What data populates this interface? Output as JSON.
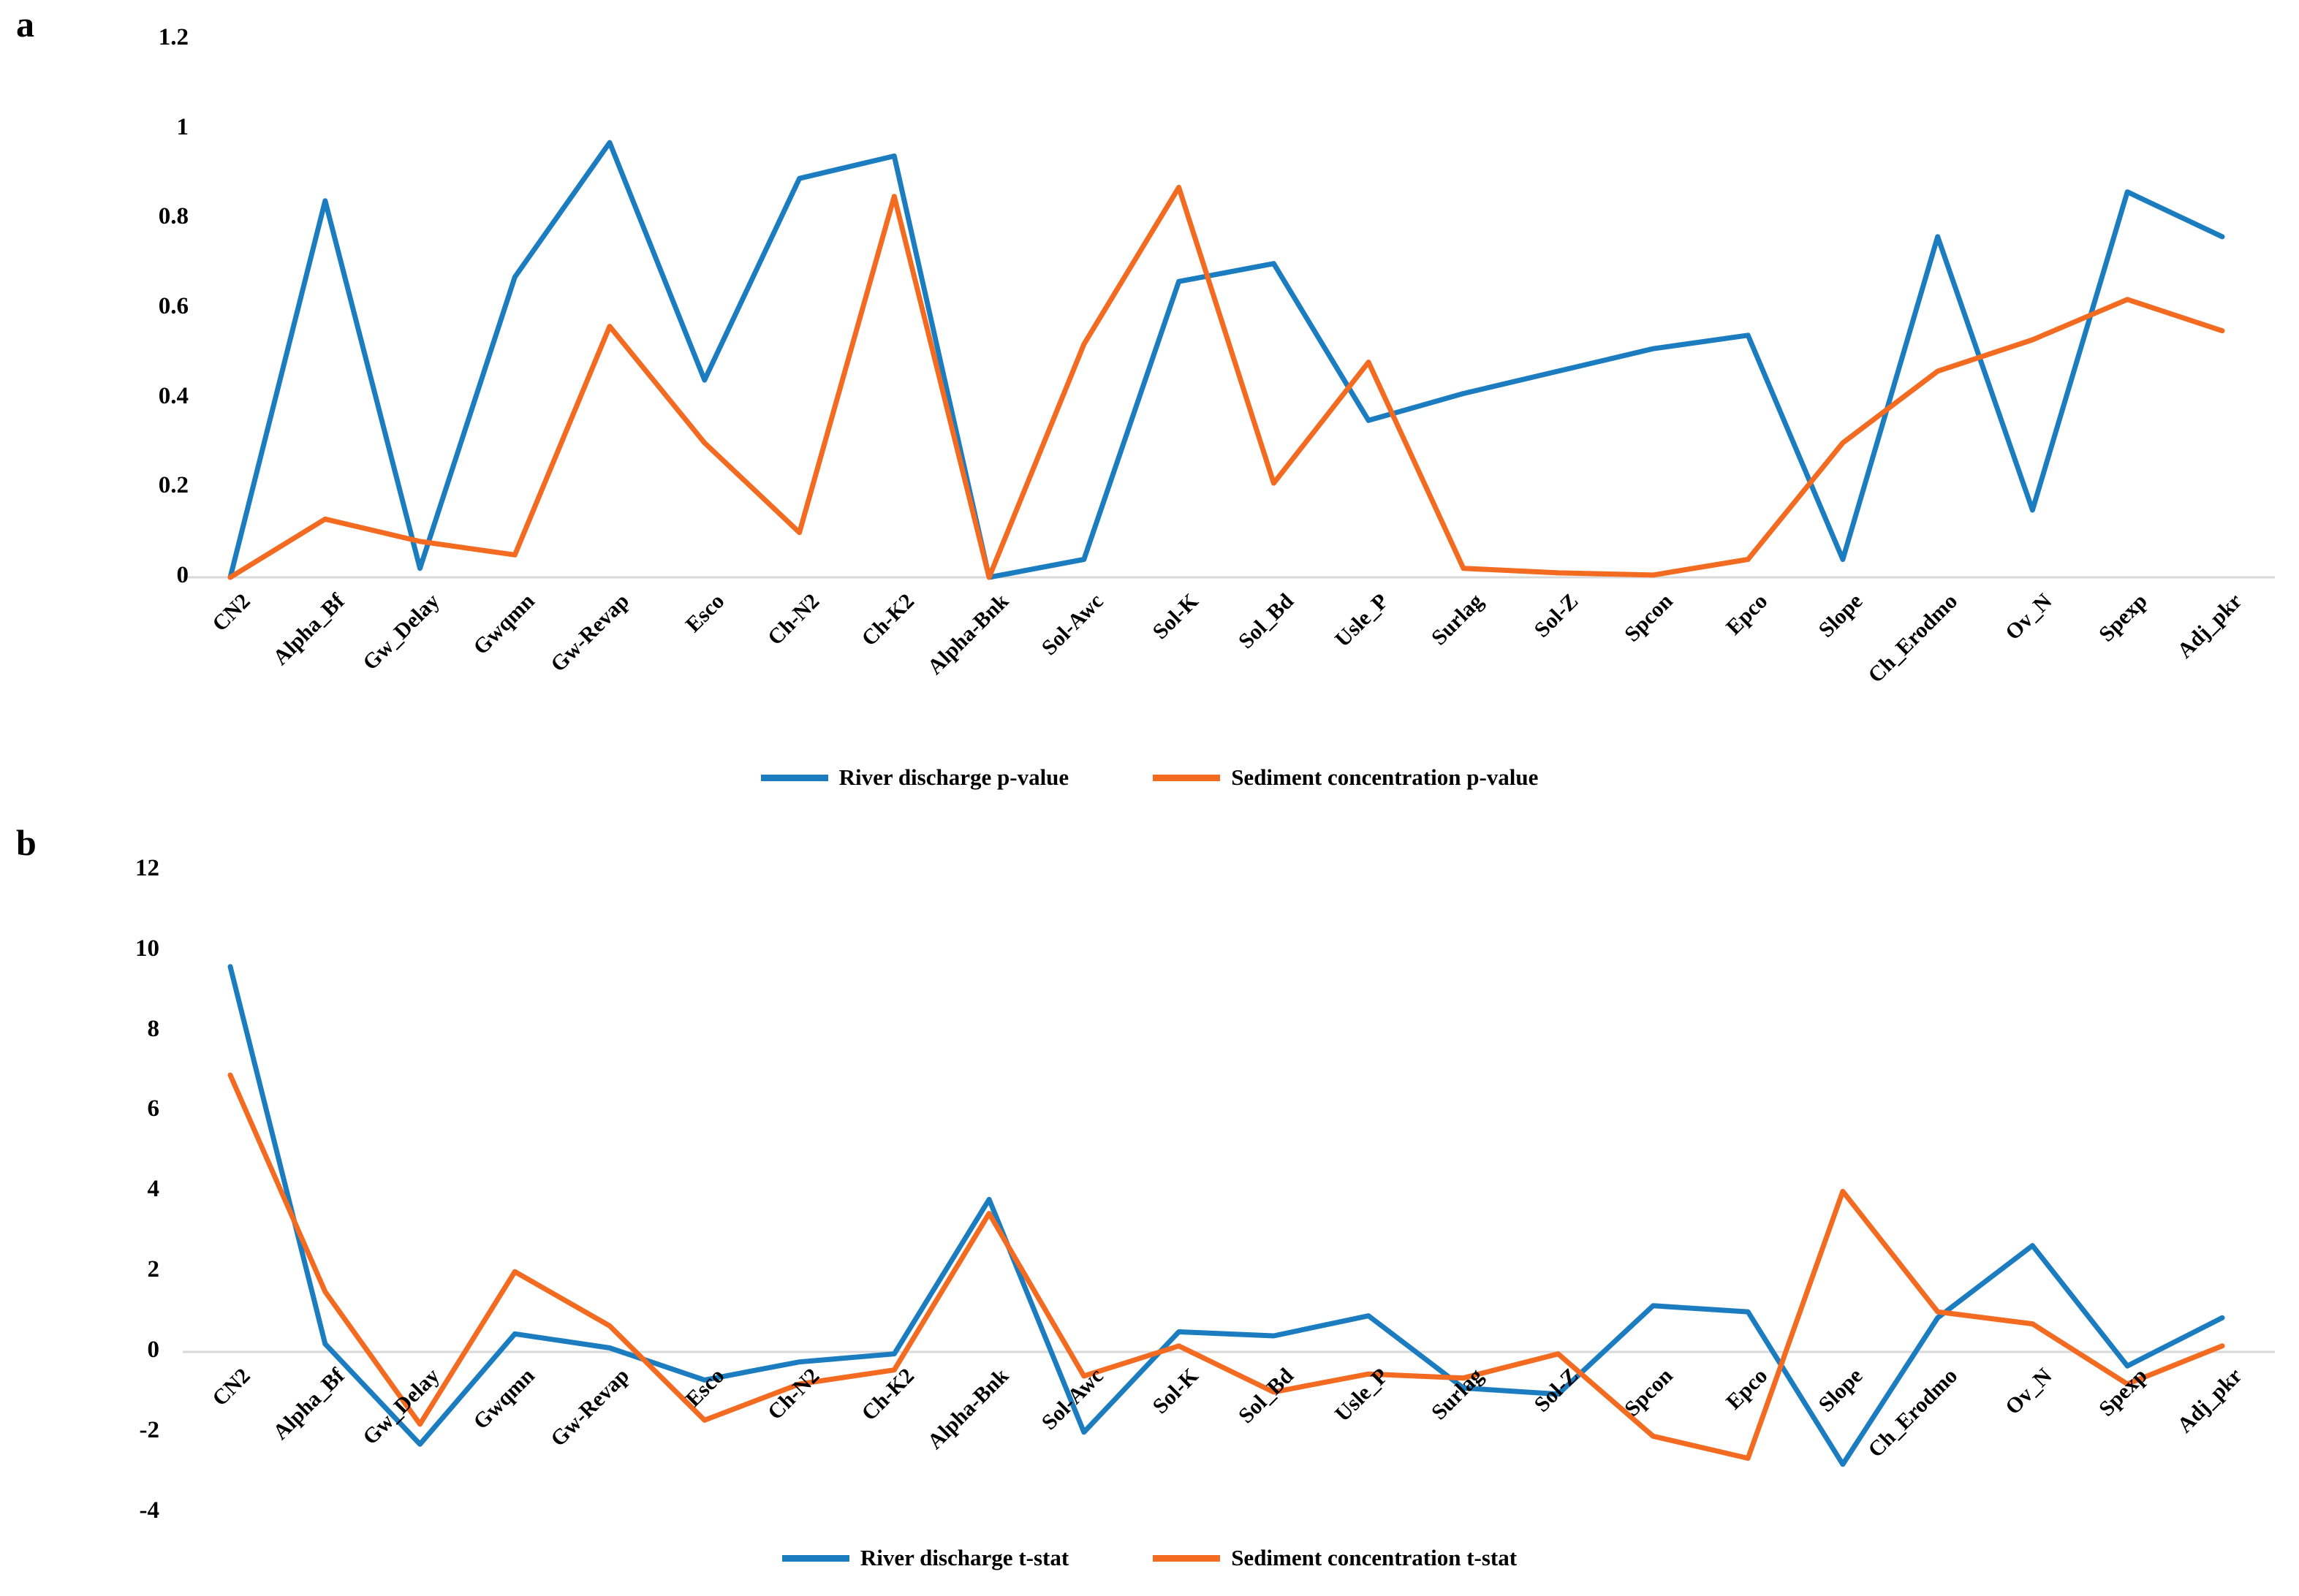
{
  "figure": {
    "background": "#ffffff",
    "axis_line_color": "#d9d9d9",
    "text_color": "#000000"
  },
  "colors": {
    "river_discharge": "#1b7dc0",
    "sediment_concentration": "#f36a21"
  },
  "chart_data": [
    {
      "type": "line",
      "panel_label": "a",
      "title": "",
      "xlabel": "",
      "ylabel": "",
      "grid": false,
      "legend_position": "bottom",
      "ylim": [
        0,
        1.2
      ],
      "yticks": [
        0,
        0.2,
        0.4,
        0.6,
        0.8,
        1,
        1.2
      ],
      "ytick_labels": [
        "0",
        "0.2",
        "0.4",
        "0.6",
        "0.8",
        "1",
        "1.2"
      ],
      "categories": [
        "CN2",
        "Alpha_Bf",
        "Gw_Delay",
        "Gwqmn",
        "Gw-Revap",
        "Esco",
        "Ch-N2",
        "Ch-K2",
        "Alpha-Bnk",
        "Sol-Awc",
        "Sol-K",
        "Sol_Bd",
        "Usle_P",
        "Surlag",
        "Sol-Z",
        "Spcon",
        "Epco",
        "Slope",
        "Ch_Erodmo",
        "Ov_N",
        "Spexp",
        "Adj_pkr"
      ],
      "series": [
        {
          "name": "River discharge p-value",
          "color": "#1b7dc0",
          "values": [
            0,
            0.84,
            0.02,
            0.67,
            0.97,
            0.44,
            0.89,
            0.94,
            0,
            0.04,
            0.66,
            0.7,
            0.35,
            0.41,
            0.46,
            0.51,
            0.54,
            0.04,
            0.76,
            0.15,
            0.86,
            0.76
          ]
        },
        {
          "name": "Sediment concentration p-value",
          "color": "#f36a21",
          "values": [
            0,
            0.13,
            0.08,
            0.05,
            0.56,
            0.3,
            0.1,
            0.85,
            0,
            0.52,
            0.87,
            0.21,
            0.48,
            0.02,
            0.01,
            0.005,
            0.04,
            0.3,
            0.46,
            0.53,
            0.62,
            0.55
          ]
        }
      ]
    },
    {
      "type": "line",
      "panel_label": "b",
      "title": "",
      "xlabel": "",
      "ylabel": "",
      "grid": false,
      "legend_position": "bottom",
      "ylim": [
        -4,
        12
      ],
      "yticks": [
        -4,
        -2,
        0,
        2,
        4,
        6,
        8,
        10,
        12
      ],
      "ytick_labels": [
        "-4",
        "-2",
        "0",
        "2",
        "4",
        "6",
        "8",
        "10",
        "12"
      ],
      "categories": [
        "CN2",
        "Alpha_Bf",
        "Gw_Delay",
        "Gwqmn",
        "Gw-Revap",
        "Esco",
        "Ch-N2",
        "Ch-K2",
        "Alpha-Bnk",
        "Sol-Awc",
        "Sol-K",
        "Sol_Bd",
        "Usle_P",
        "Surlag",
        "Sol-Z",
        "Spcon",
        "Epco",
        "Slope",
        "Ch_Erodmo",
        "Ov_N",
        "Spexp",
        "Adj_pkr"
      ],
      "series": [
        {
          "name": "River discharge t-stat",
          "color": "#1b7dc0",
          "values": [
            9.6,
            0.2,
            -2.3,
            0.45,
            0.1,
            -0.7,
            -0.25,
            -0.05,
            3.8,
            -2.0,
            0.5,
            0.4,
            0.9,
            -0.9,
            -1.05,
            1.15,
            1.0,
            -2.8,
            0.85,
            2.65,
            -0.35,
            0.85
          ]
        },
        {
          "name": "Sediment concentration t-stat",
          "color": "#f36a21",
          "values": [
            6.9,
            1.5,
            -1.8,
            2.0,
            0.65,
            -1.7,
            -0.8,
            -0.45,
            3.45,
            -0.6,
            0.15,
            -1.0,
            -0.55,
            -0.65,
            -0.05,
            -2.1,
            -2.65,
            4.0,
            1.0,
            0.7,
            -0.8,
            0.15
          ]
        }
      ]
    }
  ]
}
